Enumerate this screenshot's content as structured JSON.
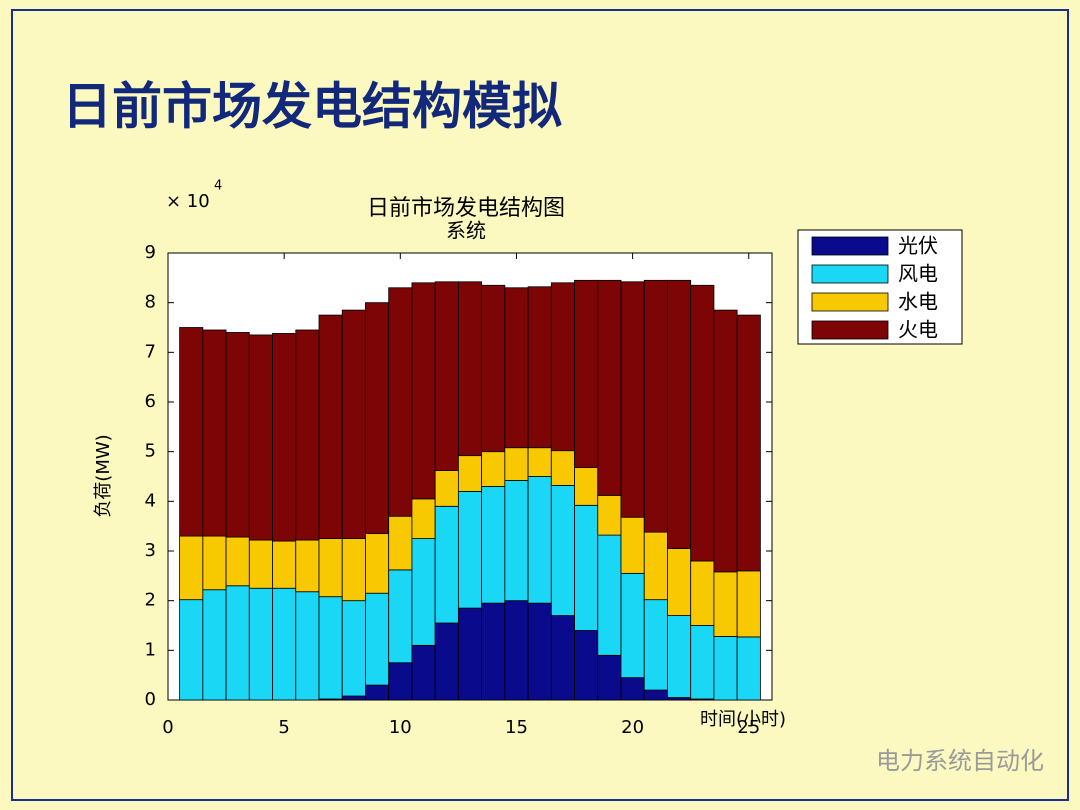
{
  "slide_title": "日前市场发电结构模拟",
  "watermark": "电力系统自动化",
  "chart_data": {
    "type": "stacked_bar",
    "title": "日前市场发电结构图",
    "subtitle": "系统",
    "y_multiplier": "× 10",
    "y_exponent": "4",
    "ylabel": "负荷(MW)",
    "xlabel": "时间(小时)",
    "x": [
      1,
      2,
      3,
      4,
      5,
      6,
      7,
      8,
      9,
      10,
      11,
      12,
      13,
      14,
      15,
      16,
      17,
      18,
      19,
      20,
      21,
      22,
      23,
      24,
      25
    ],
    "series": [
      {
        "name": "光伏",
        "color": "#0a0a8c",
        "values": [
          0,
          0,
          0,
          0,
          0,
          0,
          0.02,
          0.08,
          0.3,
          0.75,
          1.1,
          1.55,
          1.85,
          1.95,
          2.0,
          1.95,
          1.7,
          1.4,
          0.9,
          0.45,
          0.2,
          0.05,
          0.02,
          0,
          0
        ]
      },
      {
        "name": "风电",
        "color": "#19d7f5",
        "values": [
          2.02,
          2.22,
          2.3,
          2.25,
          2.25,
          2.18,
          2.06,
          1.92,
          1.85,
          1.87,
          2.15,
          2.35,
          2.35,
          2.35,
          2.42,
          2.55,
          2.62,
          2.52,
          2.42,
          2.1,
          1.82,
          1.65,
          1.48,
          1.28,
          1.27
        ]
      },
      {
        "name": "水电",
        "color": "#f8c800",
        "values": [
          1.28,
          1.08,
          0.98,
          0.97,
          0.95,
          1.04,
          1.17,
          1.25,
          1.2,
          1.08,
          0.8,
          0.72,
          0.72,
          0.7,
          0.66,
          0.58,
          0.7,
          0.76,
          0.8,
          1.13,
          1.36,
          1.35,
          1.3,
          1.3,
          1.33
        ]
      },
      {
        "name": "火电",
        "color": "#7d0505",
        "values": [
          4.2,
          4.15,
          4.12,
          4.13,
          4.18,
          4.23,
          4.5,
          4.6,
          4.65,
          4.6,
          4.35,
          3.8,
          3.5,
          3.35,
          3.22,
          3.24,
          3.38,
          3.77,
          4.33,
          4.74,
          5.07,
          5.4,
          5.55,
          5.27,
          5.15
        ]
      }
    ],
    "xlim": [
      0,
      26
    ],
    "xticks": [
      0,
      5,
      10,
      15,
      20,
      25
    ],
    "ylim": [
      0,
      9
    ],
    "yticks": [
      0,
      1,
      2,
      3,
      4,
      5,
      6,
      7,
      8,
      9
    ],
    "bar_width": 1,
    "grid": false,
    "legend": "outside-top-right"
  }
}
